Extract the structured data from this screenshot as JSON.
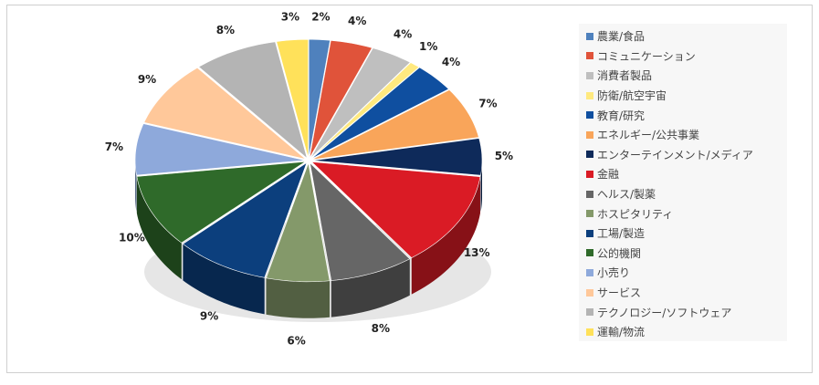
{
  "chart_data": {
    "type": "pie",
    "style": "3d-exploded",
    "legend_position": "right",
    "slices": [
      {
        "label": "農業/食品",
        "value": 2,
        "display": "2%",
        "color": "#4F81BD"
      },
      {
        "label": "コミュニケーション",
        "value": 4,
        "display": "4%",
        "color": "#E0533A"
      },
      {
        "label": "消費者製品",
        "value": 4,
        "display": "4%",
        "color": "#BFBFBF"
      },
      {
        "label": "防衛/航空宇宙",
        "value": 1,
        "display": "1%",
        "color": "#FFE97F"
      },
      {
        "label": "教育/研究",
        "value": 4,
        "display": "4%",
        "color": "#0F4FA0"
      },
      {
        "label": "エネルギー/公共事業",
        "value": 7,
        "display": "7%",
        "color": "#F9A55A"
      },
      {
        "label": "エンターテインメント/メディア",
        "value": 5,
        "display": "5%",
        "color": "#0E2A5A"
      },
      {
        "label": "金融",
        "value": 13,
        "display": "13%",
        "color": "#DA1B25"
      },
      {
        "label": "ヘルス/製薬",
        "value": 8,
        "display": "8%",
        "color": "#666666"
      },
      {
        "label": "ホスピタリティ",
        "value": 6,
        "display": "6%",
        "color": "#84996A"
      },
      {
        "label": "工場/製造",
        "value": 9,
        "display": "9%",
        "color": "#0C3F7D"
      },
      {
        "label": "公的機関",
        "value": 10,
        "display": "10%",
        "color": "#2F6A2A"
      },
      {
        "label": "小売り",
        "value": 7,
        "display": "7%",
        "color": "#8EA9DB"
      },
      {
        "label": "サービス",
        "value": 9,
        "display": "9%",
        "color": "#FFC89A"
      },
      {
        "label": "テクノロジー/ソフトウェア",
        "value": 8,
        "display": "8%",
        "color": "#B4B4B4"
      },
      {
        "label": "運輸/物流",
        "value": 3,
        "display": "3%",
        "color": "#FFE15A"
      }
    ]
  }
}
